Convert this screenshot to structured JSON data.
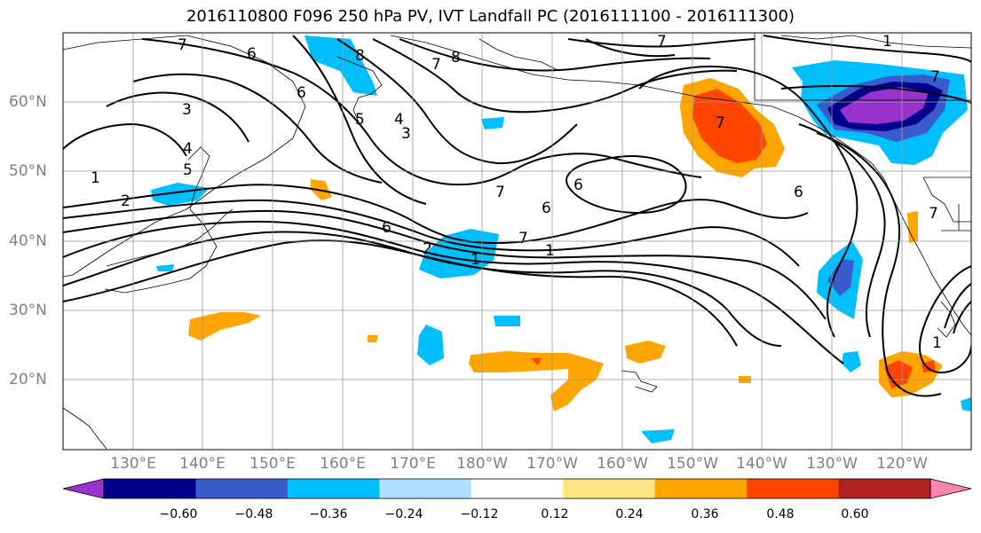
{
  "title": "2016110800 F096 250 hPa PV, IVT Landfall PC (2016111100 - 2016111300)",
  "map": {
    "projection": "PlateCarree",
    "lon_range": [
      120,
      250
    ],
    "lat_range": [
      10,
      70
    ],
    "lon_labels": [
      "130°E",
      "140°E",
      "150°E",
      "160°E",
      "170°E",
      "180°W",
      "170°W",
      "160°W",
      "150°W",
      "140°W",
      "130°W",
      "120°W"
    ],
    "lat_labels": [
      "60°N",
      "50°N",
      "40°N",
      "30°N",
      "20°N"
    ],
    "grid": true
  },
  "chart_data": {
    "type": "heatmap",
    "title": "2016110800 F096 250 hPa PV, IVT Landfall PC (2016111100 - 2016111300)",
    "colorbar": {
      "ticks": [
        "−0.60",
        "−0.48",
        "−0.36",
        "−0.24",
        "−0.12",
        "0.12",
        "0.24",
        "0.36",
        "0.48",
        "0.60"
      ],
      "colors": [
        "#9932cc",
        "#00008b",
        "#3a5bcc",
        "#00bfff",
        "#b0e0ff",
        "#ffffff",
        "#ffe680",
        "#ffa500",
        "#ff4500",
        "#b22222",
        "#ff85b0"
      ],
      "extend": "both"
    },
    "contour_labels": [
      "7",
      "6",
      "3",
      "4",
      "5",
      "1",
      "2",
      "8",
      "6",
      "7",
      "8",
      "5",
      "6",
      "3",
      "4",
      "2",
      "1",
      "7",
      "6",
      "6",
      "7",
      "1",
      "7",
      "1"
    ]
  }
}
